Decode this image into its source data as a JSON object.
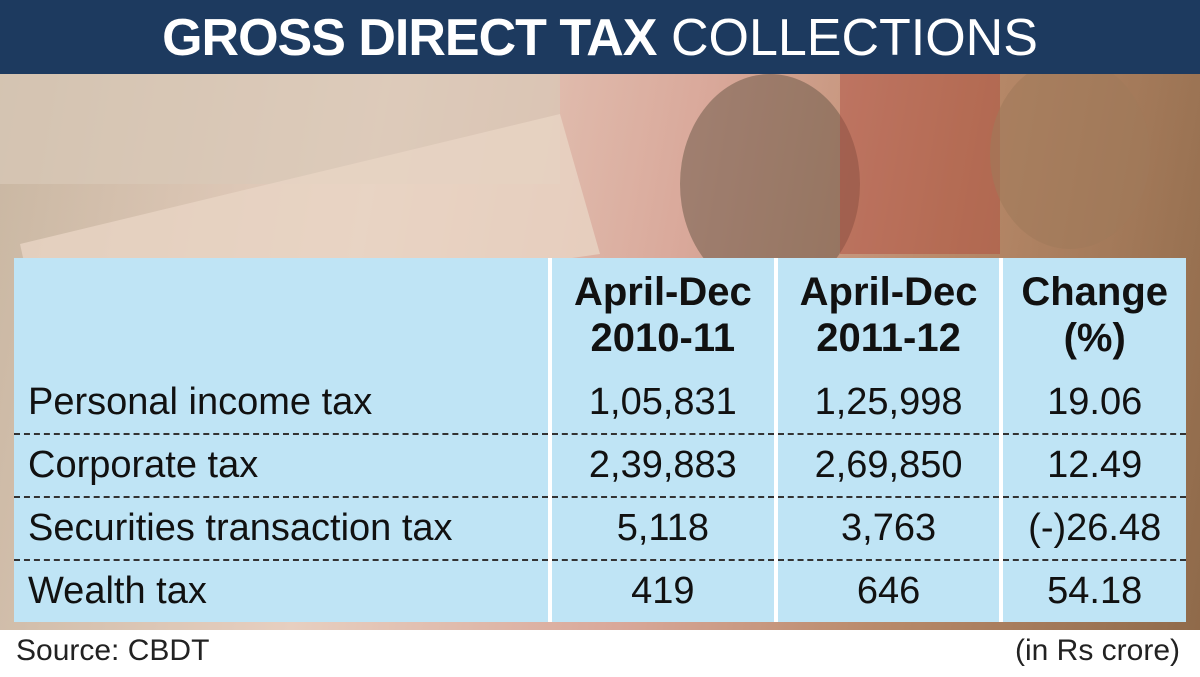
{
  "header": {
    "title_bold": "GROSS DIRECT TAX",
    "title_light": "COLLECTIONS"
  },
  "table": {
    "columns": [
      [
        "April-Dec",
        "2010-11"
      ],
      [
        "April-Dec",
        "2011-12"
      ],
      [
        "Change",
        "(%)"
      ]
    ],
    "rows": [
      [
        "Personal income tax",
        "1,05,831",
        "1,25,998",
        "19.06"
      ],
      [
        "Corporate tax",
        "2,39,883",
        "2,69,850",
        "12.49"
      ],
      [
        "Securities transaction tax",
        "5,118",
        "3,763",
        "(-)26.48"
      ],
      [
        "Wealth tax",
        "419",
        "646",
        "54.18"
      ]
    ]
  },
  "footer": {
    "source": "Source: CBDT",
    "unit": "(in Rs crore)"
  }
}
